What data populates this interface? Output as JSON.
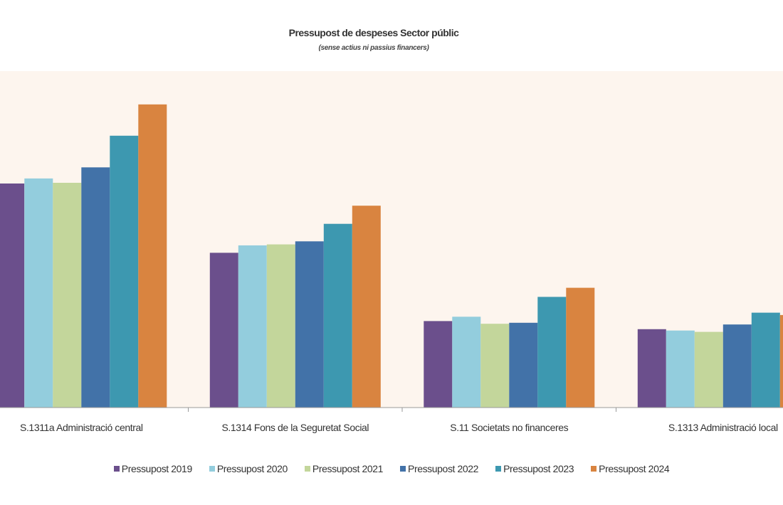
{
  "chart_data": {
    "type": "bar",
    "title": "Pressupost de despeses Sector públic",
    "subtitle": "(sense actius ni passius financers)",
    "xlabel": "",
    "ylabel": "",
    "ylim": [
      0,
      100
    ],
    "grid": false,
    "legend_position": "bottom",
    "background_color": "#fdf5ee",
    "categories": [
      "S.1311a Administració central",
      "S.1314 Fons de la Seguretat Social",
      "S.11 Societats no financeres",
      "S.1313 Administració local"
    ],
    "series": [
      {
        "name": "Pressupost 2019",
        "color": "#6b4f8c",
        "values": [
          66.6,
          46.0,
          25.7,
          23.3
        ]
      },
      {
        "name": "Pressupost 2020",
        "color": "#93cddd",
        "values": [
          68.1,
          48.2,
          27.0,
          22.9
        ]
      },
      {
        "name": "Pressupost 2021",
        "color": "#c3d69b",
        "values": [
          66.8,
          48.5,
          24.9,
          22.5
        ]
      },
      {
        "name": "Pressupost 2022",
        "color": "#4272a8",
        "values": [
          71.4,
          49.4,
          25.2,
          24.7
        ]
      },
      {
        "name": "Pressupost 2023",
        "color": "#3d98b0",
        "values": [
          80.8,
          54.6,
          32.9,
          28.2
        ]
      },
      {
        "name": "Pressupost 2024",
        "color": "#d98440",
        "values": [
          90.1,
          60.0,
          35.6,
          27.5
        ]
      }
    ]
  }
}
